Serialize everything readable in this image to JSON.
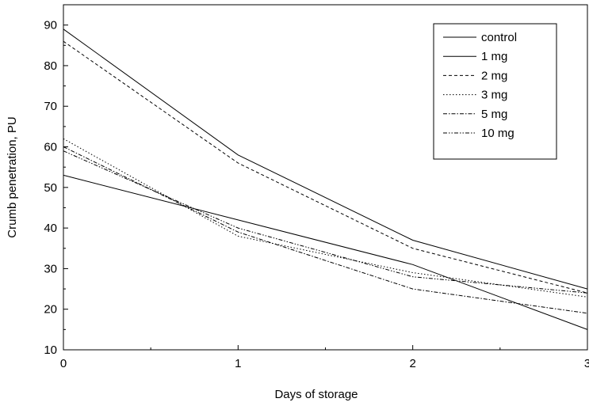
{
  "chart_data": {
    "type": "line",
    "title": "",
    "xlabel": "Days of storage",
    "ylabel": "Crumb penetration, PU",
    "xlim": [
      0,
      3
    ],
    "ylim": [
      10,
      95
    ],
    "x_ticks": [
      0,
      1,
      2,
      3
    ],
    "x_tick_labels": [
      "0",
      "1",
      "2",
      "3"
    ],
    "y_ticks": [
      10,
      20,
      30,
      40,
      50,
      60,
      70,
      80,
      90
    ],
    "y_tick_labels": [
      "10",
      "20",
      "30",
      "40",
      "50",
      "60",
      "70",
      "80",
      "90"
    ],
    "grid": false,
    "legend_position": "top-right",
    "x": [
      0,
      1,
      2,
      3
    ],
    "series": [
      {
        "name": "control",
        "values": [
          89,
          58,
          37,
          25
        ],
        "dash": "solid"
      },
      {
        "name": "1 mg",
        "values": [
          53,
          42,
          31,
          15
        ],
        "dash": "solid"
      },
      {
        "name": "2 mg",
        "values": [
          86,
          56,
          35,
          24
        ],
        "dash": "dash"
      },
      {
        "name": "3 mg",
        "values": [
          62,
          38,
          29,
          23
        ],
        "dash": "dot"
      },
      {
        "name": "5 mg",
        "values": [
          60,
          39,
          25,
          19
        ],
        "dash": "dashdot"
      },
      {
        "name": "10 mg",
        "values": [
          59,
          40,
          28,
          24
        ],
        "dash": "dashdotdot"
      }
    ]
  }
}
